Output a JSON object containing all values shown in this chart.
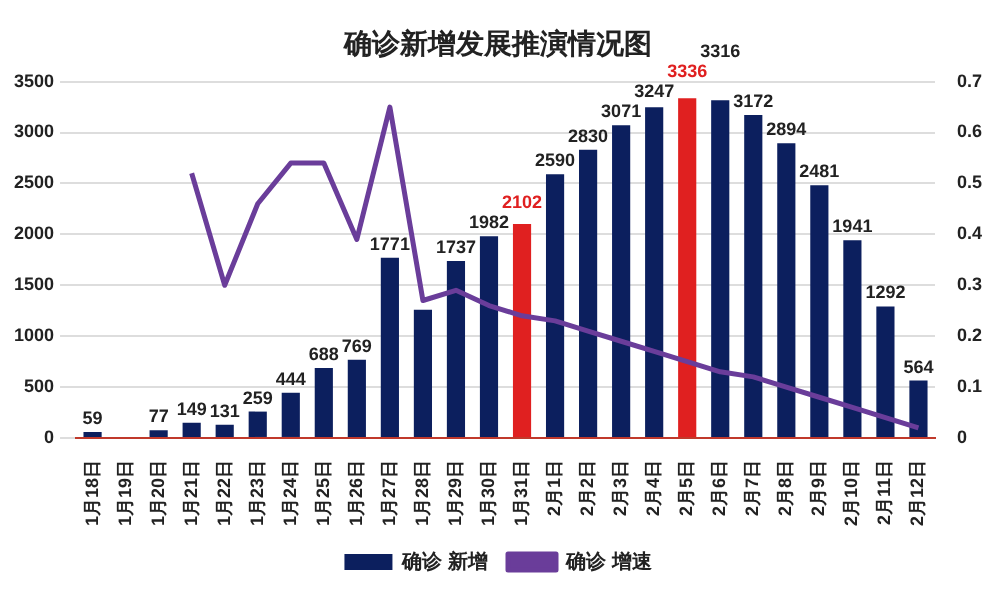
{
  "chart_data": {
    "type": "bar",
    "title": "确诊新增发展推演情况图",
    "categories": [
      "1月18日",
      "1月19日",
      "1月20日",
      "1月21日",
      "1月22日",
      "1月23日",
      "1月24日",
      "1月25日",
      "1月26日",
      "1月27日",
      "1月28日",
      "1月29日",
      "1月30日",
      "1月31日",
      "2月1日",
      "2月2日",
      "2月3日",
      "2月4日",
      "2月5日",
      "2月6日",
      "2月7日",
      "2月8日",
      "2月9日",
      "2月10日",
      "2月11日",
      "2月12日"
    ],
    "series": [
      {
        "name": "确诊 新增",
        "color": "#0c1f5e",
        "colors": [
          "#0c1f5e",
          "#0c1f5e",
          "#0c1f5e",
          "#0c1f5e",
          "#0c1f5e",
          "#0c1f5e",
          "#0c1f5e",
          "#0c1f5e",
          "#0c1f5e",
          "#0c1f5e",
          "#0c1f5e",
          "#0c1f5e",
          "#0c1f5e",
          "#e02020",
          "#0c1f5e",
          "#0c1f5e",
          "#0c1f5e",
          "#0c1f5e",
          "#e02020",
          "#0c1f5e",
          "#0c1f5e",
          "#0c1f5e",
          "#0c1f5e",
          "#0c1f5e",
          "#0c1f5e",
          "#0c1f5e"
        ],
        "values": [
          59,
          null,
          77,
          149,
          131,
          259,
          444,
          688,
          769,
          1771,
          1260,
          1737,
          1982,
          2102,
          2590,
          2830,
          3071,
          3247,
          3336,
          3316,
          3172,
          2894,
          2481,
          1941,
          1292,
          564
        ],
        "value_labels": [
          "59",
          null,
          "77",
          "149",
          "131",
          "259",
          "444",
          "688",
          "769",
          "1771",
          null,
          "1737",
          "1982",
          "2102",
          "2590",
          "2830",
          "3071",
          "3247",
          "3336",
          "3316",
          "3172",
          "2894",
          "2481",
          "1941",
          "1292",
          "564"
        ]
      },
      {
        "name": "确诊 增速",
        "type": "line",
        "axis": "y2",
        "color": "#6a3d9a",
        "values": [
          null,
          null,
          null,
          0.52,
          0.3,
          0.46,
          0.54,
          0.54,
          0.39,
          0.65,
          0.27,
          0.29,
          0.26,
          0.24,
          0.23,
          0.21,
          0.19,
          0.17,
          0.15,
          0.13,
          0.12,
          0.1,
          0.08,
          0.06,
          0.04,
          0.02
        ]
      }
    ],
    "ylim": [
      0,
      3500
    ],
    "yticks": [
      0,
      500,
      1000,
      1500,
      2000,
      2500,
      3000,
      3500
    ],
    "y2lim": [
      0,
      0.7
    ],
    "y2ticks": [
      0,
      0.1,
      0.2,
      0.3,
      0.4,
      0.5,
      0.6,
      0.7
    ],
    "grid": "y",
    "legend": "bottom",
    "marker": "none"
  }
}
